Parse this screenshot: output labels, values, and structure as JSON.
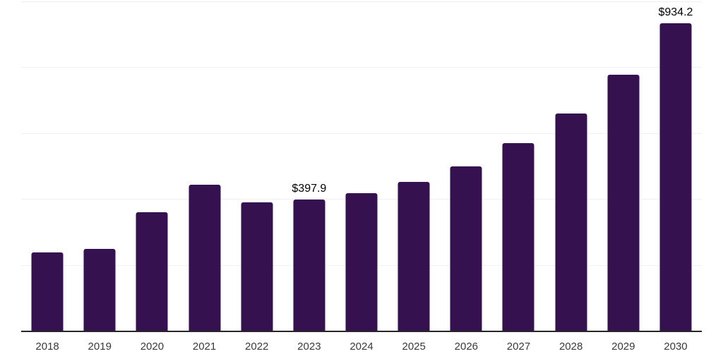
{
  "chart_data": {
    "type": "bar",
    "title": "",
    "xlabel": "",
    "ylabel": "",
    "categories": [
      "2018",
      "2019",
      "2020",
      "2021",
      "2022",
      "2023",
      "2024",
      "2025",
      "2026",
      "2027",
      "2028",
      "2029",
      "2030"
    ],
    "values": [
      238,
      248,
      360,
      443,
      390,
      397.9,
      418,
      452,
      499,
      570,
      660,
      777,
      934.2
    ],
    "data_labels": {
      "2023": "$397.9",
      "2030": "$934.2"
    },
    "ylim": [
      0,
      1000
    ],
    "gridline_values": [
      200,
      400,
      600,
      800,
      1000
    ],
    "grid": true,
    "legend_position": "none",
    "y_axis_labels_visible": false,
    "colors": {
      "bar": "#36114F",
      "axis_line": "#262626",
      "gridline": "#F1F1F1",
      "tick_label": "#3A3A3A",
      "data_label": "#000000",
      "background": "#FFFFFF"
    }
  }
}
